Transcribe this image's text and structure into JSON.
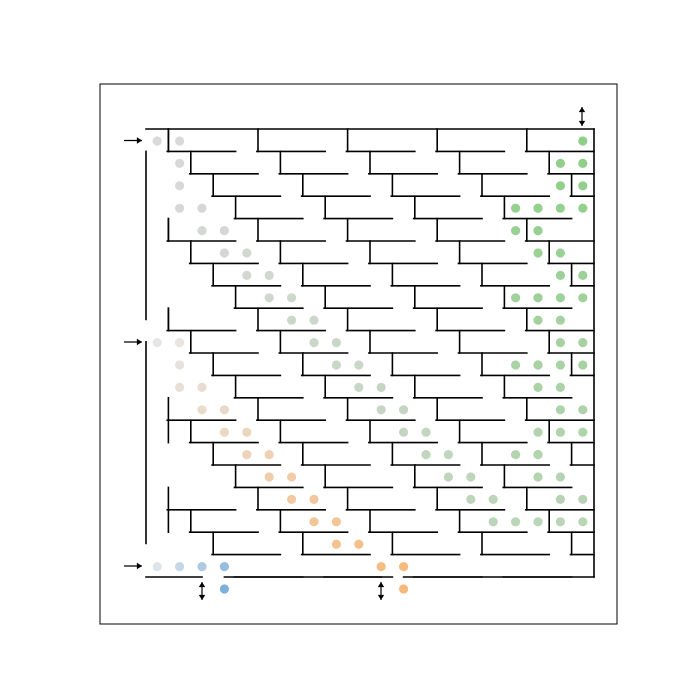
{
  "puzzle": {
    "kind": "maze",
    "grid": {
      "columns": 20,
      "rows": 20
    },
    "entrances": [
      {
        "name": "entrance-top",
        "column": 0,
        "row": 0
      },
      {
        "name": "entrance-middle",
        "column": 0,
        "row": 9
      },
      {
        "name": "entrance-bottom",
        "column": 0,
        "row": 19
      }
    ],
    "exits": [
      {
        "name": "exit-top-right",
        "column": 19,
        "row": 0
      },
      {
        "name": "exit-bottom-left",
        "column": 3,
        "row": 19
      },
      {
        "name": "exit-bottom-middle",
        "column": 11,
        "row": 19
      }
    ],
    "colors": {
      "wall": "#000000",
      "frame": "#000000",
      "background": "#ffffff",
      "path_gray": "#d9d9d9",
      "path_peach": "#f7c9a0",
      "path_green": "#9fd49a",
      "path_blue": "#a8c4e0"
    }
  },
  "solution_paths": [
    {
      "name": "path-gray-to-green",
      "color_from": "#d9d9d9",
      "color_to": "#8fcf88",
      "cells": [
        [
          0,
          0
        ],
        [
          1,
          0
        ],
        [
          1,
          1
        ],
        [
          1,
          2
        ],
        [
          1,
          3
        ],
        [
          2,
          3
        ],
        [
          2,
          4
        ],
        [
          3,
          4
        ],
        [
          3,
          5
        ],
        [
          4,
          5
        ],
        [
          4,
          6
        ],
        [
          5,
          6
        ],
        [
          5,
          7
        ],
        [
          6,
          7
        ],
        [
          6,
          8
        ],
        [
          7,
          8
        ],
        [
          7,
          9
        ],
        [
          8,
          9
        ],
        [
          8,
          10
        ],
        [
          9,
          10
        ],
        [
          9,
          11
        ],
        [
          10,
          11
        ],
        [
          10,
          12
        ],
        [
          11,
          12
        ],
        [
          11,
          13
        ],
        [
          12,
          13
        ],
        [
          12,
          14
        ],
        [
          13,
          14
        ],
        [
          13,
          15
        ],
        [
          14,
          15
        ],
        [
          14,
          16
        ],
        [
          15,
          16
        ],
        [
          15,
          17
        ],
        [
          16,
          17
        ],
        [
          17,
          17
        ],
        [
          18,
          17
        ],
        [
          19,
          17
        ],
        [
          19,
          16
        ],
        [
          18,
          16
        ],
        [
          18,
          15
        ],
        [
          17,
          15
        ],
        [
          17,
          14
        ],
        [
          16,
          14
        ],
        [
          17,
          14
        ],
        [
          17,
          13
        ],
        [
          18,
          13
        ],
        [
          19,
          13
        ],
        [
          19,
          12
        ],
        [
          18,
          12
        ],
        [
          18,
          11
        ],
        [
          17,
          11
        ],
        [
          17,
          10
        ],
        [
          16,
          10
        ],
        [
          17,
          10
        ],
        [
          18,
          10
        ],
        [
          19,
          10
        ],
        [
          19,
          9
        ],
        [
          18,
          9
        ],
        [
          18,
          8
        ],
        [
          17,
          8
        ],
        [
          17,
          7
        ],
        [
          16,
          7
        ],
        [
          17,
          7
        ],
        [
          18,
          7
        ],
        [
          19,
          7
        ],
        [
          19,
          6
        ],
        [
          18,
          6
        ],
        [
          18,
          5
        ],
        [
          17,
          5
        ],
        [
          17,
          4
        ],
        [
          16,
          4
        ],
        [
          17,
          4
        ],
        [
          17,
          3
        ],
        [
          16,
          3
        ],
        [
          17,
          3
        ],
        [
          18,
          3
        ],
        [
          19,
          3
        ],
        [
          19,
          2
        ],
        [
          18,
          2
        ],
        [
          18,
          1
        ],
        [
          19,
          1
        ],
        [
          19,
          0
        ]
      ]
    },
    {
      "name": "path-peach",
      "color_from": "#e6e6e6",
      "color_to": "#f7b97a",
      "cells": [
        [
          0,
          9
        ],
        [
          1,
          9
        ],
        [
          1,
          10
        ],
        [
          1,
          11
        ],
        [
          2,
          11
        ],
        [
          2,
          12
        ],
        [
          3,
          12
        ],
        [
          3,
          13
        ],
        [
          4,
          13
        ],
        [
          4,
          14
        ],
        [
          5,
          14
        ],
        [
          5,
          15
        ],
        [
          6,
          15
        ],
        [
          6,
          16
        ],
        [
          7,
          16
        ],
        [
          7,
          17
        ],
        [
          8,
          17
        ],
        [
          8,
          18
        ],
        [
          9,
          18
        ],
        [
          10,
          19
        ],
        [
          11,
          19
        ],
        [
          11,
          20
        ]
      ]
    },
    {
      "name": "path-blue",
      "color_from": "#dde4ea",
      "color_to": "#7fb0d8",
      "cells": [
        [
          0,
          19
        ],
        [
          1,
          19
        ],
        [
          2,
          19
        ],
        [
          3,
          19
        ],
        [
          3,
          20
        ]
      ]
    }
  ]
}
